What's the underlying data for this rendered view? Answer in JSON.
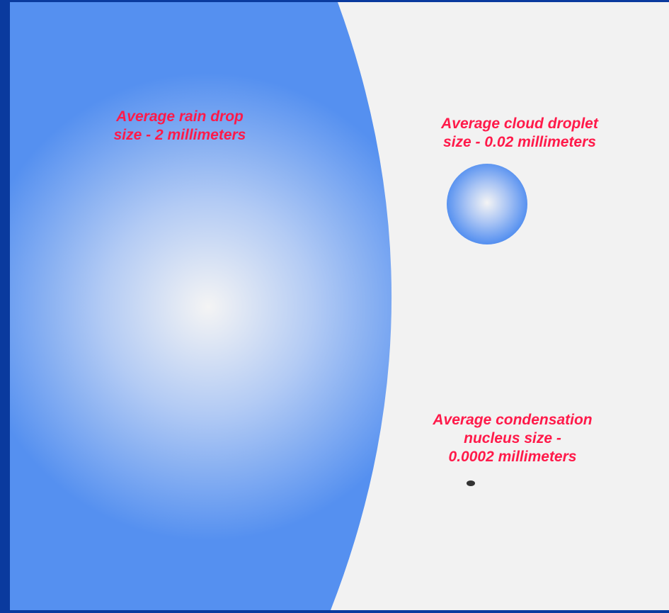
{
  "labels": {
    "rain_drop": [
      "Average rain drop",
      "size - 2 millimeters"
    ],
    "cloud_droplet": [
      "Average cloud droplet",
      "size - 0.02 millimeters"
    ],
    "condensation_nucleus": [
      "Average condensation",
      "nucleus size -",
      "0.0002 millimeters"
    ]
  },
  "colors": {
    "frame": "#0a3a9e",
    "background": "#f2f2f2",
    "drop_blue": "#5590f0",
    "drop_highlight": "#f4f4f4",
    "label_text": "#ff1a4a",
    "nucleus": "#333333"
  }
}
